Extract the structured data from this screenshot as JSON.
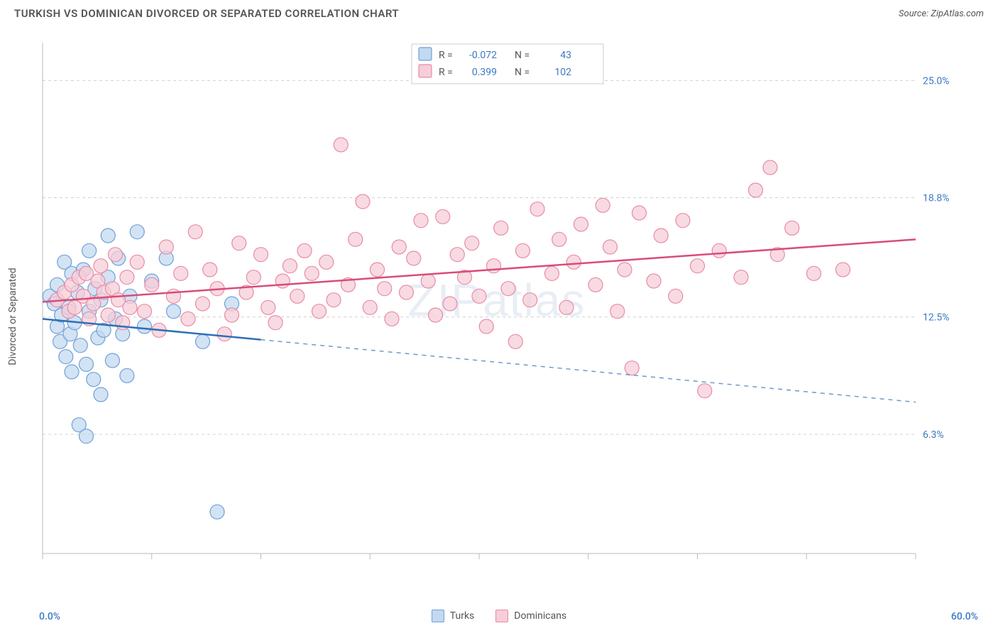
{
  "title": "TURKISH VS DOMINICAN DIVORCED OR SEPARATED CORRELATION CHART",
  "source": "Source: ZipAtlas.com",
  "ylabel": "Divorced or Separated",
  "watermark": "ZIPatlas",
  "chart": {
    "type": "scatter",
    "xlim": [
      0,
      60
    ],
    "ylim": [
      0,
      27
    ],
    "x_ticks": [
      0,
      7.5,
      15,
      22.5,
      30,
      37.5,
      45,
      52.5,
      60
    ],
    "y_gridlines": [
      6.3,
      12.5,
      18.8,
      25.0
    ],
    "y_tick_labels": [
      "6.3%",
      "12.5%",
      "18.8%",
      "25.0%"
    ],
    "x_min_label": "0.0%",
    "x_max_label": "60.0%",
    "background_color": "#ffffff",
    "grid_color": "#d0d0d0",
    "axis_color": "#bbbbbb",
    "label_color": "#3b78c4",
    "series": [
      {
        "name": "Turks",
        "marker_fill": "#c3d9f0",
        "marker_stroke": "#6fa0d6",
        "marker_radius": 10,
        "line_color": "#2f6fb5",
        "line_width": 2.5,
        "R": "-0.072",
        "N": "43",
        "trend": {
          "y0": 12.4,
          "y60": 8.0,
          "solid_until_x": 15
        },
        "points": [
          [
            0.5,
            13.6
          ],
          [
            0.8,
            13.2
          ],
          [
            1.0,
            12.0
          ],
          [
            1.0,
            14.2
          ],
          [
            1.2,
            11.2
          ],
          [
            1.3,
            12.6
          ],
          [
            1.5,
            15.4
          ],
          [
            1.6,
            10.4
          ],
          [
            1.8,
            13.0
          ],
          [
            1.9,
            11.6
          ],
          [
            2.0,
            14.8
          ],
          [
            2.0,
            9.6
          ],
          [
            2.2,
            12.2
          ],
          [
            2.4,
            13.8
          ],
          [
            2.5,
            6.8
          ],
          [
            2.6,
            11.0
          ],
          [
            2.8,
            15.0
          ],
          [
            3.0,
            10.0
          ],
          [
            3.0,
            6.2
          ],
          [
            3.2,
            12.8
          ],
          [
            3.2,
            16.0
          ],
          [
            3.5,
            9.2
          ],
          [
            3.6,
            14.0
          ],
          [
            3.8,
            11.4
          ],
          [
            4.0,
            13.4
          ],
          [
            4.0,
            8.4
          ],
          [
            4.2,
            11.8
          ],
          [
            4.5,
            14.6
          ],
          [
            4.5,
            16.8
          ],
          [
            4.8,
            10.2
          ],
          [
            5.0,
            12.4
          ],
          [
            5.2,
            15.6
          ],
          [
            5.5,
            11.6
          ],
          [
            5.8,
            9.4
          ],
          [
            6.0,
            13.6
          ],
          [
            6.5,
            17.0
          ],
          [
            7.0,
            12.0
          ],
          [
            7.5,
            14.4
          ],
          [
            8.5,
            15.6
          ],
          [
            9.0,
            12.8
          ],
          [
            11.0,
            11.2
          ],
          [
            12.0,
            2.2
          ],
          [
            13.0,
            13.2
          ]
        ]
      },
      {
        "name": "Dominicans",
        "marker_fill": "#f6cdd8",
        "marker_stroke": "#e98aa5",
        "marker_radius": 10,
        "line_color": "#d94c7a",
        "line_width": 2.5,
        "R": "0.399",
        "N": "102",
        "trend": {
          "y0": 13.3,
          "y60": 16.6,
          "solid_until_x": 60
        },
        "points": [
          [
            1.0,
            13.4
          ],
          [
            1.5,
            13.8
          ],
          [
            1.8,
            12.8
          ],
          [
            2.0,
            14.2
          ],
          [
            2.2,
            13.0
          ],
          [
            2.5,
            14.6
          ],
          [
            2.8,
            13.6
          ],
          [
            3.0,
            14.8
          ],
          [
            3.2,
            12.4
          ],
          [
            3.5,
            13.2
          ],
          [
            3.8,
            14.4
          ],
          [
            4.0,
            15.2
          ],
          [
            4.2,
            13.8
          ],
          [
            4.5,
            12.6
          ],
          [
            4.8,
            14.0
          ],
          [
            5.0,
            15.8
          ],
          [
            5.2,
            13.4
          ],
          [
            5.5,
            12.2
          ],
          [
            5.8,
            14.6
          ],
          [
            6.0,
            13.0
          ],
          [
            6.5,
            15.4
          ],
          [
            7.0,
            12.8
          ],
          [
            7.5,
            14.2
          ],
          [
            8.0,
            11.8
          ],
          [
            8.5,
            16.2
          ],
          [
            9.0,
            13.6
          ],
          [
            9.5,
            14.8
          ],
          [
            10.0,
            12.4
          ],
          [
            10.5,
            17.0
          ],
          [
            11.0,
            13.2
          ],
          [
            11.5,
            15.0
          ],
          [
            12.0,
            14.0
          ],
          [
            12.5,
            11.6
          ],
          [
            13.0,
            12.6
          ],
          [
            13.5,
            16.4
          ],
          [
            14.0,
            13.8
          ],
          [
            14.5,
            14.6
          ],
          [
            15.0,
            15.8
          ],
          [
            15.5,
            13.0
          ],
          [
            16.0,
            12.2
          ],
          [
            16.5,
            14.4
          ],
          [
            17.0,
            15.2
          ],
          [
            17.5,
            13.6
          ],
          [
            18.0,
            16.0
          ],
          [
            18.5,
            14.8
          ],
          [
            19.0,
            12.8
          ],
          [
            19.5,
            15.4
          ],
          [
            20.0,
            13.4
          ],
          [
            20.5,
            21.6
          ],
          [
            21.0,
            14.2
          ],
          [
            21.5,
            16.6
          ],
          [
            22.0,
            18.6
          ],
          [
            22.5,
            13.0
          ],
          [
            23.0,
            15.0
          ],
          [
            23.5,
            14.0
          ],
          [
            24.0,
            12.4
          ],
          [
            24.5,
            16.2
          ],
          [
            25.0,
            13.8
          ],
          [
            25.5,
            15.6
          ],
          [
            26.0,
            17.6
          ],
          [
            26.5,
            14.4
          ],
          [
            27.0,
            12.6
          ],
          [
            27.5,
            17.8
          ],
          [
            28.0,
            13.2
          ],
          [
            28.5,
            15.8
          ],
          [
            29.0,
            14.6
          ],
          [
            29.5,
            16.4
          ],
          [
            30.0,
            13.6
          ],
          [
            30.5,
            12.0
          ],
          [
            31.0,
            15.2
          ],
          [
            31.5,
            17.2
          ],
          [
            32.0,
            14.0
          ],
          [
            32.5,
            11.2
          ],
          [
            33.0,
            16.0
          ],
          [
            33.5,
            13.4
          ],
          [
            34.0,
            18.2
          ],
          [
            35.0,
            14.8
          ],
          [
            35.5,
            16.6
          ],
          [
            36.0,
            13.0
          ],
          [
            36.5,
            15.4
          ],
          [
            37.0,
            17.4
          ],
          [
            38.0,
            14.2
          ],
          [
            38.5,
            18.4
          ],
          [
            39.0,
            16.2
          ],
          [
            39.5,
            12.8
          ],
          [
            40.0,
            15.0
          ],
          [
            40.5,
            9.8
          ],
          [
            41.0,
            18.0
          ],
          [
            42.0,
            14.4
          ],
          [
            42.5,
            16.8
          ],
          [
            43.5,
            13.6
          ],
          [
            44.0,
            17.6
          ],
          [
            45.0,
            15.2
          ],
          [
            45.5,
            8.6
          ],
          [
            46.5,
            16.0
          ],
          [
            48.0,
            14.6
          ],
          [
            49.0,
            19.2
          ],
          [
            50.0,
            20.4
          ],
          [
            50.5,
            15.8
          ],
          [
            51.5,
            17.2
          ],
          [
            53.0,
            14.8
          ],
          [
            55.0,
            15.0
          ]
        ]
      }
    ],
    "stats_box": {
      "border_color": "#cccccc",
      "bg_color": "#ffffff",
      "text_color": "#555555",
      "value_color": "#3b78c4",
      "font_size": 14
    },
    "bottom_legend_font_size": 14
  }
}
